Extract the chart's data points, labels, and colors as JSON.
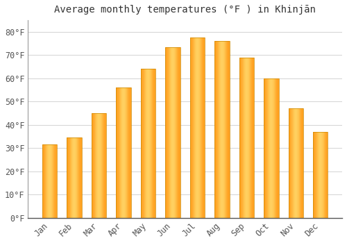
{
  "title": "Average monthly temperatures (°F ) in Khinjān",
  "months": [
    "Jan",
    "Feb",
    "Mar",
    "Apr",
    "May",
    "Jun",
    "Jul",
    "Aug",
    "Sep",
    "Oct",
    "Nov",
    "Dec"
  ],
  "values": [
    31.5,
    34.5,
    45,
    56,
    64,
    73.5,
    77.5,
    76,
    69,
    60,
    47,
    37
  ],
  "bar_color_main": "#FFA500",
  "bar_color_light": "#FFD070",
  "bar_color_dark": "#FF8C00",
  "background_color": "#FFFFFF",
  "plot_background": "#FFFFFF",
  "grid_color": "#CCCCCC",
  "axis_color": "#999999",
  "ylim": [
    0,
    85
  ],
  "yticks": [
    0,
    10,
    20,
    30,
    40,
    50,
    60,
    70,
    80
  ],
  "ytick_labels": [
    "0°F",
    "10°F",
    "20°F",
    "30°F",
    "40°F",
    "50°F",
    "60°F",
    "70°F",
    "80°F"
  ],
  "title_fontsize": 10,
  "tick_fontsize": 8.5,
  "figsize": [
    5.0,
    3.5
  ],
  "dpi": 100
}
